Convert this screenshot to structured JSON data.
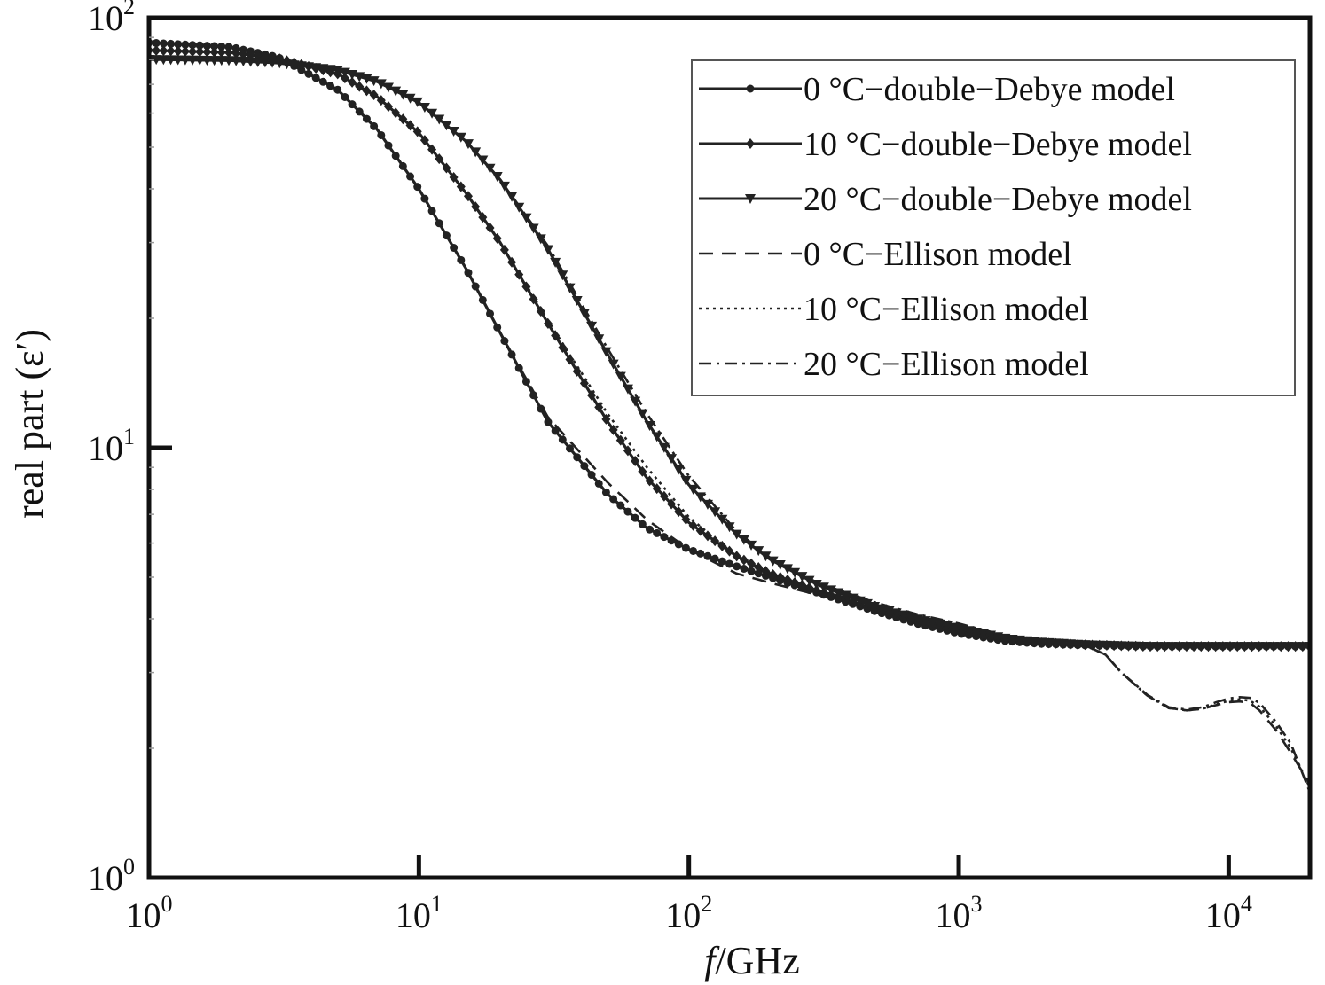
{
  "chart_data": {
    "type": "line",
    "title": "",
    "xlabel": {
      "italic": "f",
      "rest": "/GHz"
    },
    "ylabel": "real part (ε′)",
    "x_scale": "log",
    "y_scale": "log",
    "xlim": [
      1,
      20000
    ],
    "ylim": [
      1,
      100
    ],
    "x_ticks": [
      {
        "base": "10",
        "exp": "0",
        "value": 1
      },
      {
        "base": "10",
        "exp": "1",
        "value": 10
      },
      {
        "base": "10",
        "exp": "2",
        "value": 100
      },
      {
        "base": "10",
        "exp": "3",
        "value": 1000
      },
      {
        "base": "10",
        "exp": "4",
        "value": 10000
      }
    ],
    "y_ticks": [
      {
        "base": "10",
        "exp": "0",
        "value": 1
      },
      {
        "base": "10",
        "exp": "1",
        "value": 10
      },
      {
        "base": "10",
        "exp": "2",
        "value": 100
      }
    ],
    "grid": false,
    "legend_position": "top-right",
    "colors": {
      "line": "#222222",
      "axis": "#111111"
    },
    "series": [
      {
        "name": "0 °C−double−Debye model",
        "style": "solid",
        "marker": "circle",
        "x": [
          1,
          2,
          3,
          5,
          7,
          10,
          15,
          20,
          30,
          50,
          70,
          100,
          150,
          200,
          300,
          500,
          700,
          1000,
          1500,
          2000,
          3000,
          5000,
          10000,
          20000
        ],
        "y": [
          87.5,
          85.5,
          81.0,
          68.0,
          55.0,
          40.0,
          26.0,
          18.5,
          11.5,
          7.8,
          6.5,
          5.8,
          5.3,
          5.0,
          4.6,
          4.15,
          3.9,
          3.7,
          3.55,
          3.5,
          3.47,
          3.45,
          3.45,
          3.45
        ]
      },
      {
        "name": "10 °C−double−Debye model",
        "style": "solid",
        "marker": "diamond",
        "x": [
          1,
          2,
          3,
          5,
          7,
          10,
          15,
          20,
          30,
          50,
          70,
          100,
          150,
          200,
          300,
          500,
          700,
          1000,
          1500,
          2000,
          3000,
          5000,
          10000,
          20000
        ],
        "y": [
          84.0,
          83.0,
          80.5,
          74.0,
          65.5,
          54.0,
          39.0,
          30.0,
          19.5,
          11.5,
          8.5,
          6.7,
          5.6,
          5.1,
          4.65,
          4.2,
          3.95,
          3.75,
          3.58,
          3.52,
          3.48,
          3.45,
          3.45,
          3.45
        ]
      },
      {
        "name": "20 °C−double−Debye model",
        "style": "solid",
        "marker": "triangle-down",
        "x": [
          1,
          2,
          3,
          5,
          7,
          10,
          15,
          20,
          30,
          50,
          70,
          100,
          150,
          200,
          300,
          500,
          700,
          1000,
          1500,
          2000,
          3000,
          5000,
          10000,
          20000
        ],
        "y": [
          80.0,
          79.5,
          78.5,
          75.5,
          71.0,
          63.5,
          51.5,
          42.0,
          29.0,
          16.5,
          11.5,
          8.2,
          6.3,
          5.5,
          4.8,
          4.25,
          4.0,
          3.8,
          3.6,
          3.53,
          3.48,
          3.45,
          3.45,
          3.45
        ]
      },
      {
        "name": "0 °C−Ellison model",
        "style": "dashed",
        "x": [
          1,
          2,
          3,
          5,
          7,
          10,
          15,
          20,
          30,
          50,
          70,
          100,
          150,
          200,
          300,
          500,
          700,
          1000,
          1500,
          2000,
          3000,
          3500,
          4000,
          5000,
          6000,
          7000,
          8000,
          9000,
          10000,
          11000,
          12000,
          13000,
          15000,
          17000,
          20000
        ],
        "y": [
          87.5,
          85.5,
          81.0,
          68.0,
          55.0,
          40.0,
          26.0,
          18.5,
          11.8,
          8.3,
          6.8,
          5.8,
          5.1,
          4.85,
          4.55,
          4.2,
          4.0,
          3.8,
          3.6,
          3.5,
          3.45,
          3.3,
          3.0,
          2.65,
          2.48,
          2.45,
          2.47,
          2.52,
          2.56,
          2.57,
          2.55,
          2.45,
          2.2,
          1.95,
          1.65
        ]
      },
      {
        "name": "10 °C−Ellison model",
        "style": "dotted",
        "x": [
          1,
          2,
          3,
          5,
          7,
          10,
          15,
          20,
          30,
          50,
          70,
          100,
          150,
          200,
          300,
          500,
          700,
          1000,
          1500,
          2000,
          3000,
          3500,
          4000,
          5000,
          6000,
          7000,
          8000,
          9000,
          10000,
          11000,
          12000,
          13000,
          15000,
          17000,
          20000
        ],
        "y": [
          84.0,
          83.0,
          80.5,
          74.0,
          65.5,
          54.0,
          39.0,
          30.0,
          19.8,
          12.0,
          9.0,
          6.9,
          5.6,
          5.05,
          4.65,
          4.3,
          4.05,
          3.85,
          3.62,
          3.52,
          3.45,
          3.3,
          3.0,
          2.65,
          2.48,
          2.45,
          2.47,
          2.53,
          2.58,
          2.6,
          2.58,
          2.5,
          2.25,
          2.0,
          1.62
        ]
      },
      {
        "name": "20 °C−Ellison model",
        "style": "dashdot",
        "x": [
          1,
          2,
          3,
          5,
          7,
          10,
          15,
          20,
          30,
          50,
          70,
          100,
          150,
          200,
          300,
          500,
          700,
          1000,
          1500,
          2000,
          3000,
          3500,
          4000,
          5000,
          6000,
          7000,
          8000,
          9000,
          10000,
          11000,
          12000,
          13000,
          15000,
          17000,
          20000
        ],
        "y": [
          80.0,
          79.5,
          78.5,
          75.5,
          71.0,
          63.5,
          51.5,
          42.0,
          29.5,
          17.0,
          12.0,
          8.6,
          6.4,
          5.55,
          4.85,
          4.35,
          4.1,
          3.9,
          3.65,
          3.53,
          3.45,
          3.3,
          3.0,
          2.66,
          2.49,
          2.46,
          2.49,
          2.56,
          2.61,
          2.63,
          2.62,
          2.55,
          2.3,
          2.05,
          1.58
        ]
      }
    ]
  }
}
